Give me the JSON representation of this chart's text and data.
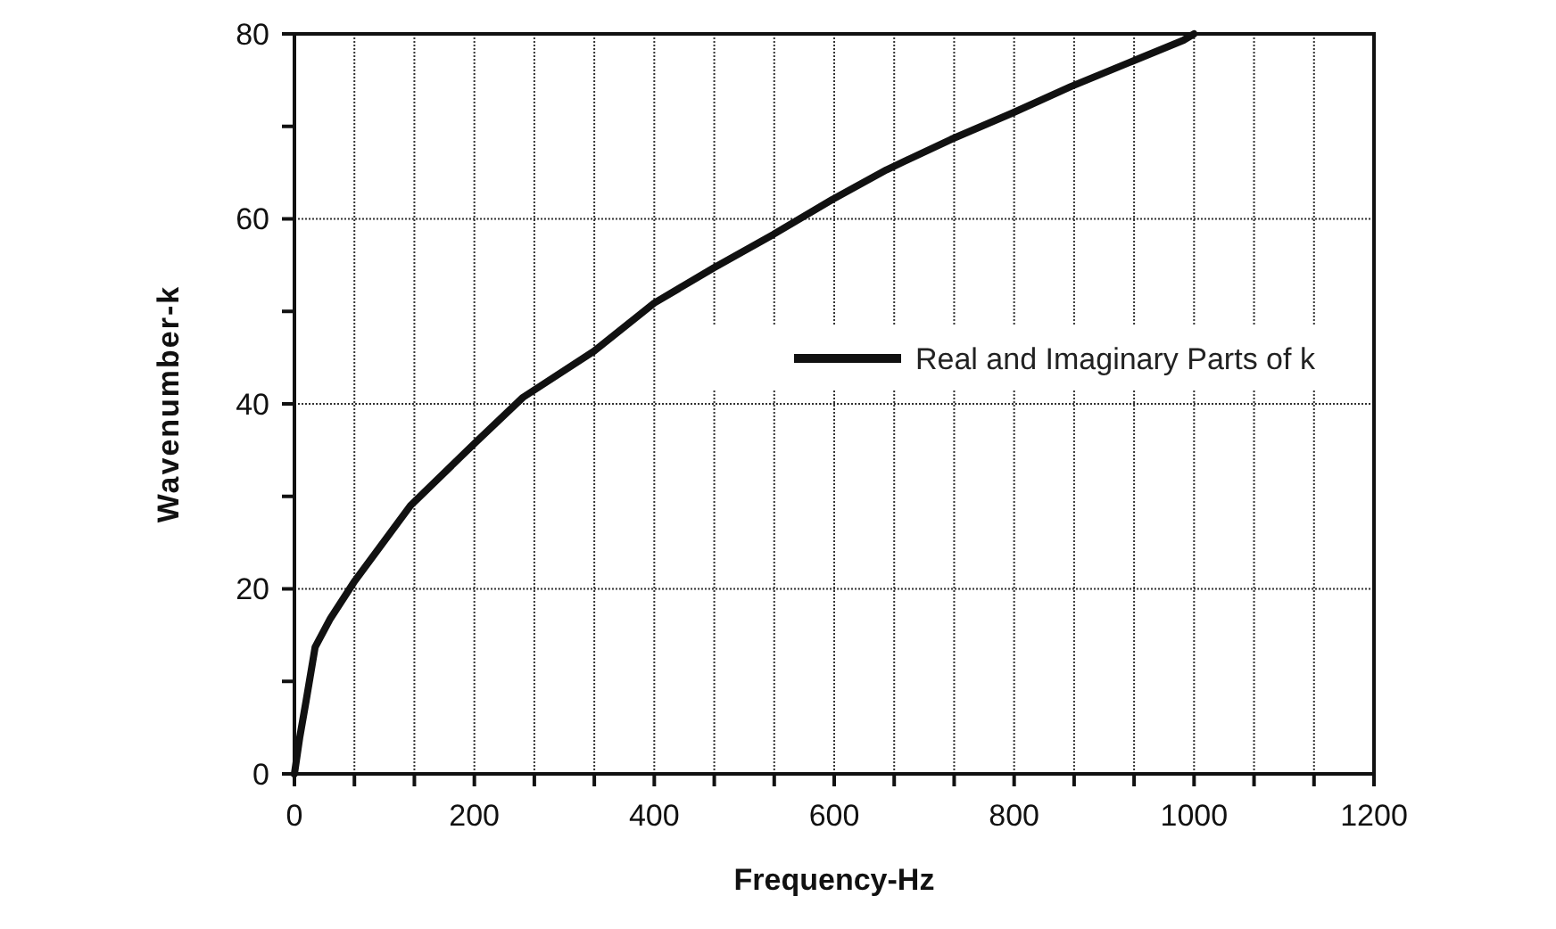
{
  "chart_data": {
    "type": "line",
    "xlabel": "Frequency-Hz",
    "ylabel": "Wavenumber-k",
    "xlim": [
      0,
      1200
    ],
    "ylim": [
      0,
      80
    ],
    "xticks": [
      0,
      {
        "value": 66.67,
        "label": null
      },
      {
        "value": 133.33,
        "label": null
      },
      200,
      {
        "value": 266.67,
        "label": null
      },
      {
        "value": 333.33,
        "label": null
      },
      400,
      {
        "value": 466.67,
        "label": null
      },
      {
        "value": 533.33,
        "label": null
      },
      600,
      {
        "value": 666.67,
        "label": null
      },
      {
        "value": 733.33,
        "label": null
      },
      800,
      {
        "value": 866.67,
        "label": null
      },
      {
        "value": 933.33,
        "label": null
      },
      1000,
      {
        "value": 1066.67,
        "label": null
      },
      {
        "value": 1133.33,
        "label": null
      },
      1200
    ],
    "yticks": [
      0,
      {
        "value": 10,
        "label": null
      },
      20,
      {
        "value": 30,
        "label": null
      },
      40,
      {
        "value": 50,
        "label": null
      },
      60,
      {
        "value": 70,
        "label": null
      },
      80
    ],
    "grid": true,
    "legend": "right",
    "marker": "none",
    "line_style": "solid",
    "series": [
      {
        "name": "Real and Imaginary Parts of k",
        "color": "#111111",
        "x": [
          0,
          6,
          13,
          23,
          40,
          66,
          129,
          202,
          254,
          333,
          400,
          466,
          532,
          598,
          658,
          730,
          797,
          863,
          928,
          988,
          1000
        ],
        "values": [
          0,
          4,
          7.9,
          13.7,
          16.8,
          20.7,
          29,
          35.9,
          40.7,
          45.7,
          50.9,
          54.7,
          58.3,
          62.1,
          65.3,
          68.6,
          71.4,
          74.3,
          76.9,
          79.3,
          80
        ]
      }
    ]
  }
}
